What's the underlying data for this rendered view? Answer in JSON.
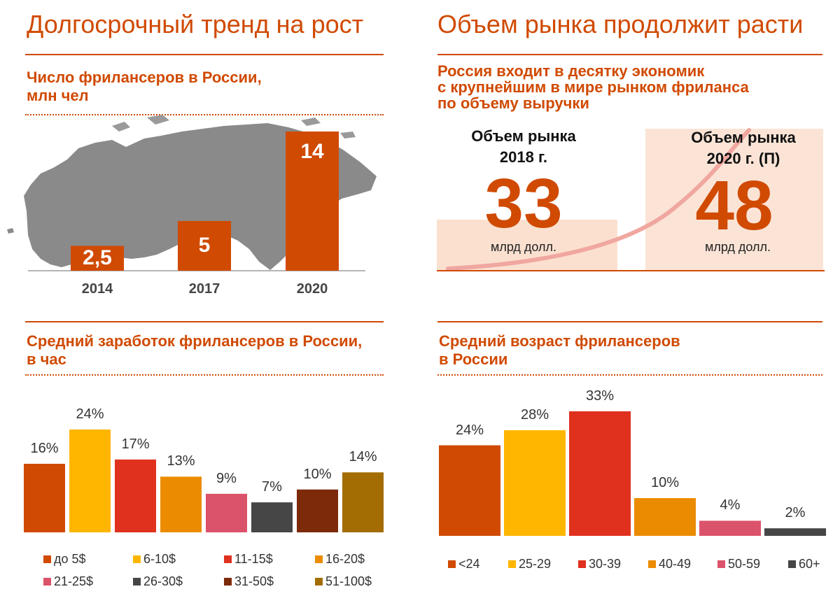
{
  "titles": {
    "left": "Долгосрочный тренд на рост",
    "right": "Объем рынка продолжит расти"
  },
  "freelancers_count": {
    "subtitle_line1": "Число фрилансеров в России,",
    "subtitle_line2": "млн чел"
  },
  "market": {
    "subtitle_line1": "Россия входит в десятку экономик",
    "subtitle_line2": "с крупнейшим в мире рынком фриланса",
    "subtitle_line3": "по объему выручки",
    "y2018": {
      "head1": "Объем рынка",
      "head2": "2018 г.",
      "value": "33",
      "unit": "млрд долл."
    },
    "y2020": {
      "head1": "Объем рынка",
      "head2": "2020 г. (П)",
      "value": "48",
      "unit": "млрд долл."
    }
  },
  "earnings": {
    "subtitle_line1": "Средний заработок фрилансеров в России,",
    "subtitle_line2": "в час"
  },
  "age": {
    "subtitle_line1": "Средний возраст фрилансеров",
    "subtitle_line2": "в России"
  },
  "chart_data": [
    {
      "type": "bar",
      "title": "Число фрилансеров в России, млн чел",
      "categories": [
        "2014",
        "2017",
        "2020"
      ],
      "values": [
        2.5,
        5,
        14
      ],
      "value_labels": [
        "2,5",
        "5",
        "14"
      ],
      "colors": [
        "#d04a02"
      ],
      "ylim": [
        0,
        14
      ]
    },
    {
      "type": "bar",
      "title": "Средний заработок фрилансеров в России, в час",
      "categories": [
        "до 5$",
        "6-10$",
        "11-15$",
        "16-20$",
        "21-25$",
        "26-30$",
        "31-50$",
        "51-100$"
      ],
      "values": [
        16,
        24,
        17,
        13,
        9,
        7,
        10,
        14
      ],
      "value_labels": [
        "16%",
        "24%",
        "17%",
        "13%",
        "9%",
        "7%",
        "10%",
        "14%"
      ],
      "colors": [
        "#d04a02",
        "#ffb600",
        "#e0301e",
        "#eb8c00",
        "#db536a",
        "#464646",
        "#7d2a0b",
        "#a36d04"
      ],
      "ylim": [
        0,
        24
      ],
      "legend": "bottom"
    },
    {
      "type": "bar",
      "title": "Средний возраст фрилансеров в России",
      "categories": [
        "<24",
        "25-29",
        "30-39",
        "40-49",
        "50-59",
        "60+"
      ],
      "values": [
        24,
        28,
        33,
        10,
        4,
        2
      ],
      "value_labels": [
        "24%",
        "28%",
        "33%",
        "10%",
        "4%",
        "2%"
      ],
      "colors": [
        "#d04a02",
        "#ffb600",
        "#e0301e",
        "#eb8c00",
        "#db536a",
        "#464646"
      ],
      "ylim": [
        0,
        33
      ],
      "legend": "bottom"
    }
  ]
}
